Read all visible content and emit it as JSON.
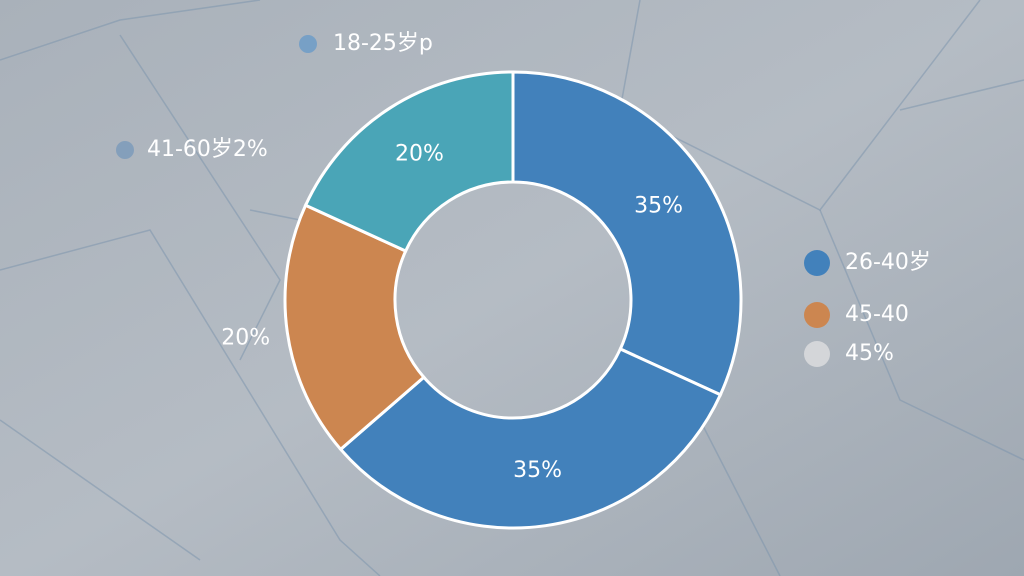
{
  "chart_data": {
    "type": "donut",
    "values": [
      35,
      35,
      20,
      20
    ],
    "value_labels": [
      "35%",
      "35%",
      "20%",
      "20%"
    ],
    "colors": [
      "#4281bb",
      "#4281bb",
      "#cc8650",
      "#4aa5b7"
    ],
    "legend": [
      {
        "name": "18-25岁p",
        "color": "#6d9cc8"
      },
      {
        "name": "41-60岁2%",
        "color": "#7c9bbb"
      },
      {
        "name": "26-40岁",
        "color": "#4281bb"
      },
      {
        "name": "45-40",
        "color": "#cc8650"
      },
      {
        "name": "45%",
        "color": "#d4d6d9"
      }
    ]
  }
}
